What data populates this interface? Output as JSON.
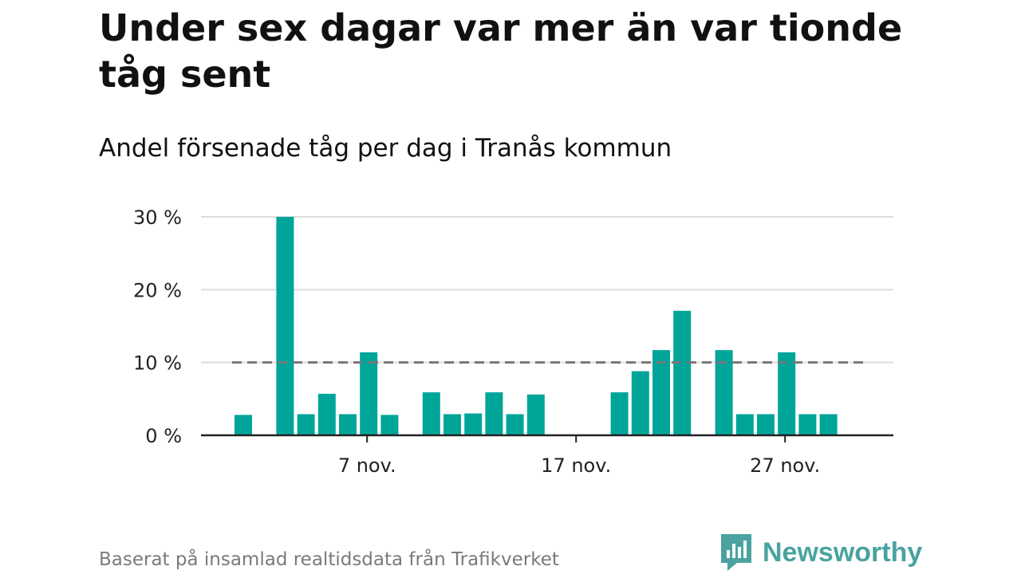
{
  "title": "Under sex dagar var mer än var tionde tåg sent",
  "subtitle": "Andel försenade tåg per dag i Tranås kommun",
  "source": "Baserat på insamlad realtidsdata från Trafikverket",
  "brand": "Newsworthy",
  "colors": {
    "bar": "#00a59a",
    "grid": "#dddddd",
    "axis": "#222222",
    "reference": "#777777",
    "brand": "#4aa3a0"
  },
  "chart_data": {
    "type": "bar",
    "x_type": "date",
    "year_unknown": true,
    "categories": [
      "1 nov.",
      "2 nov.",
      "3 nov.",
      "4 nov.",
      "5 nov.",
      "6 nov.",
      "7 nov.",
      "8 nov.",
      "9 nov.",
      "10 nov.",
      "11 nov.",
      "12 nov.",
      "13 nov.",
      "14 nov.",
      "15 nov.",
      "16 nov.",
      "17 nov.",
      "18 nov.",
      "19 nov.",
      "20 nov.",
      "21 nov.",
      "22 nov.",
      "23 nov.",
      "24 nov.",
      "25 nov.",
      "26 nov.",
      "27 nov.",
      "28 nov.",
      "29 nov.",
      "30 nov."
    ],
    "values": [
      2.8,
      0,
      30.0,
      2.9,
      5.7,
      2.9,
      11.4,
      2.8,
      0,
      5.9,
      2.9,
      3.0,
      5.9,
      2.9,
      5.6,
      0,
      0,
      0,
      5.9,
      8.8,
      11.7,
      17.1,
      0,
      11.7,
      2.9,
      2.9,
      11.4,
      2.9,
      2.9,
      0
    ],
    "x_ticks": [
      {
        "category": "7 nov.",
        "label": "7 nov."
      },
      {
        "category": "17 nov.",
        "label": "17 nov."
      },
      {
        "category": "27 nov.",
        "label": "27 nov."
      }
    ],
    "y_ticks": [
      {
        "value": 0,
        "label": "0 %"
      },
      {
        "value": 10,
        "label": "10 %"
      },
      {
        "value": 20,
        "label": "20 %"
      },
      {
        "value": 30,
        "label": "30 %"
      }
    ],
    "ylim": [
      0,
      30
    ],
    "reference_line": 10,
    "grid": true
  }
}
